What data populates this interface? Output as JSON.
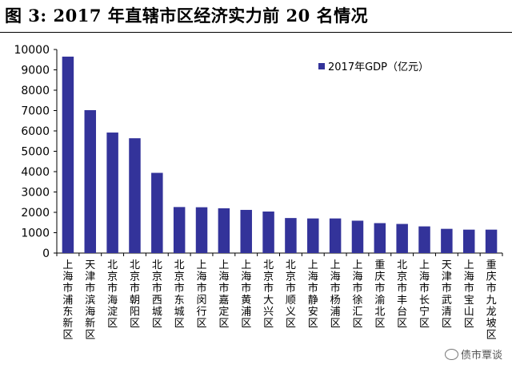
{
  "header": {
    "title": "图 3:  2017 年直辖市区经济实力前 20 名情况"
  },
  "watermark": {
    "text": "债市覃谈",
    "icon": "wechat-icon"
  },
  "chart_data": {
    "type": "bar",
    "title": "",
    "xlabel": "",
    "ylabel": "",
    "ylim": [
      0,
      10000
    ],
    "yticks": [
      0,
      1000,
      2000,
      3000,
      4000,
      5000,
      6000,
      7000,
      8000,
      9000,
      10000
    ],
    "grid": false,
    "legend_position": "top-right",
    "bar_color": "#33339a",
    "categories": [
      "上海市浦东新区",
      "天津市滨海新区",
      "北京市海淀区",
      "北京市朝阳区",
      "北京市西城区",
      "北京市东城区",
      "上海市闵行区",
      "上海市嘉定区",
      "上海市黄浦区",
      "北京市大兴区",
      "北京市顺义区",
      "上海市静安区",
      "上海市杨浦区",
      "上海市徐汇区",
      "重庆市渝北区",
      "北京市丰台区",
      "上海市长宁区",
      "天津市武清区",
      "上海市宝山区",
      "重庆市九龙坡区"
    ],
    "series": [
      {
        "name": "2017年GDP（亿元）",
        "values": [
          9650,
          7020,
          5920,
          5640,
          3940,
          2260,
          2250,
          2200,
          2120,
          2040,
          1720,
          1700,
          1700,
          1590,
          1470,
          1430,
          1310,
          1190,
          1150,
          1150
        ]
      }
    ]
  }
}
